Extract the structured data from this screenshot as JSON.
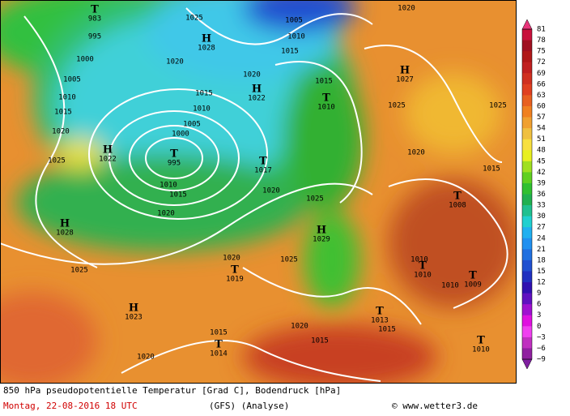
{
  "map": {
    "caption": "850 hPa pseudopotentielle Temperatur [Grad C], Bodendruck [hPa]",
    "date": "Montag, 22-08-2016  18 UTC",
    "model": "(GFS)  (Analyse)",
    "credit": "© www.wetter3.de",
    "pressure_centers": [
      {
        "symbol": "T",
        "value": "983"
      },
      {
        "symbol": "H",
        "value": "1028"
      },
      {
        "symbol": "H",
        "value": "1022"
      },
      {
        "symbol": "H",
        "value": "1027"
      },
      {
        "symbol": "T",
        "value": "1010"
      },
      {
        "symbol": "H",
        "value": "1022"
      },
      {
        "symbol": "T",
        "value": "995"
      },
      {
        "symbol": "T",
        "value": "1017"
      },
      {
        "symbol": "H",
        "value": "1028"
      },
      {
        "symbol": "H",
        "value": "1029"
      },
      {
        "symbol": "T",
        "value": "1019"
      },
      {
        "symbol": "T",
        "value": "1008"
      },
      {
        "symbol": "T",
        "value": "1010"
      },
      {
        "symbol": "T",
        "value": "1009"
      },
      {
        "symbol": "T",
        "value": "1013"
      },
      {
        "symbol": "H",
        "value": "1023"
      },
      {
        "symbol": "T",
        "value": "1014"
      },
      {
        "symbol": "T",
        "value": "1010"
      }
    ],
    "isobar_labels": [
      "995",
      "1000",
      "1005",
      "1010",
      "1015",
      "1020",
      "1025",
      "1025",
      "1020",
      "1020",
      "1015",
      "1010",
      "1005",
      "1000",
      "1010",
      "1015",
      "1020",
      "1020",
      "1025",
      "1025",
      "1020",
      "1015",
      "1015",
      "1020",
      "1025",
      "1010",
      "1015",
      "1005",
      "1020",
      "1015",
      "1025",
      "1025",
      "1020",
      "1015",
      "1010",
      "1010",
      "1015",
      "1020"
    ],
    "colorbar": {
      "labels": [
        "81",
        "78",
        "75",
        "72",
        "69",
        "66",
        "63",
        "60",
        "57",
        "54",
        "51",
        "48",
        "45",
        "42",
        "39",
        "36",
        "33",
        "30",
        "27",
        "24",
        "21",
        "18",
        "15",
        "12",
        "9",
        "6",
        "3",
        "0",
        "−3",
        "−6",
        "−9"
      ],
      "colors": [
        "#c8103c",
        "#a01020",
        "#b01818",
        "#c02020",
        "#d03020",
        "#e04020",
        "#e86020",
        "#f08020",
        "#f0a030",
        "#f0c040",
        "#f8e040",
        "#e8f020",
        "#a0e020",
        "#60d020",
        "#30c030",
        "#20b050",
        "#20c090",
        "#20d0d0",
        "#20b0f0",
        "#2090f0",
        "#2070e0",
        "#2050d0",
        "#2030c0",
        "#3010b0",
        "#6010c0",
        "#a010d0",
        "#e010e0",
        "#f040f0",
        "#c030c0",
        "#9020a0"
      ]
    }
  }
}
